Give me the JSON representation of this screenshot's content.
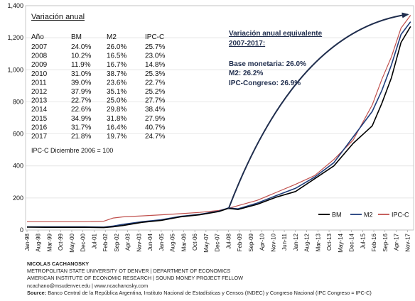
{
  "chart_data": {
    "type": "line",
    "ylim": [
      0,
      1400
    ],
    "yticks": [
      0,
      200,
      400,
      600,
      800,
      1000,
      1200,
      1400
    ],
    "x_tick_labels": [
      "Jan-98",
      "Aug-98",
      "Mar-99",
      "Oct-99",
      "May-00",
      "Dec-00",
      "Jul-01",
      "Feb-02",
      "Sep-02",
      "Apr-03",
      "Nov-03",
      "Jun-04",
      "Jan-05",
      "Aug-05",
      "Mar-06",
      "Oct-06",
      "May-07",
      "Dec-07",
      "Jul-08",
      "Feb-09",
      "Sep-09",
      "Apr-10",
      "Nov-10",
      "Jun-11",
      "Jan-12",
      "Aug-12",
      "Mar-13",
      "Oct-13",
      "May-14",
      "Dec-14",
      "Jul-15",
      "Feb-16",
      "Sep-16",
      "Apr-17",
      "Nov-17"
    ],
    "x_points": [
      "Jan-98",
      "Jan-99",
      "Jan-00",
      "Jan-01",
      "Jan-02",
      "Jul-02",
      "Jan-03",
      "Jan-04",
      "Jan-05",
      "Jan-06",
      "Jan-07",
      "Jan-08",
      "Jul-08",
      "Jan-09",
      "Jan-10",
      "Jan-11",
      "Jan-12",
      "Jan-13",
      "Jan-14",
      "Jan-15",
      "Jan-16",
      "Jul-16",
      "Jan-17",
      "Jul-17",
      "Jan-18"
    ],
    "series": [
      {
        "name": "BM",
        "color": "#000000",
        "values": [
          18,
          17,
          17,
          17,
          15,
          20,
          28,
          48,
          60,
          82,
          95,
          115,
          135,
          128,
          160,
          205,
          240,
          320,
          400,
          540,
          650,
          790,
          950,
          1170,
          1270
        ]
      },
      {
        "name": "M2",
        "color": "#1f3d7a",
        "values": [
          20,
          20,
          20,
          20,
          18,
          25,
          35,
          52,
          64,
          85,
          98,
          118,
          138,
          132,
          168,
          215,
          260,
          330,
          420,
          580,
          740,
          870,
          1030,
          1220,
          1300
        ]
      },
      {
        "name": "IPC-C",
        "color": "#c0504d",
        "values": [
          52,
          52,
          52,
          52,
          55,
          75,
          82,
          88,
          95,
          102,
          110,
          122,
          135,
          152,
          185,
          235,
          285,
          340,
          440,
          560,
          780,
          940,
          1080,
          1260,
          1340
        ]
      }
    ],
    "arrow": {
      "from": {
        "x": "Jul-08",
        "y": 130
      },
      "to": {
        "x": "Jan-18",
        "y": 1345
      }
    },
    "legend_position": "bottom-right"
  },
  "table": {
    "title": "Variación anual",
    "headers": [
      "Año",
      "BM",
      "M2",
      "IPC-C"
    ],
    "rows": [
      [
        "2007",
        "24.0%",
        "26.0%",
        "25.7%"
      ],
      [
        "2008",
        "10.2%",
        "16.5%",
        "23.0%"
      ],
      [
        "2009",
        "11.9%",
        "16.7%",
        "14.8%"
      ],
      [
        "2010",
        "31.0%",
        "38.7%",
        "25.3%"
      ],
      [
        "2011",
        "39.0%",
        "23.6%",
        "22.7%"
      ],
      [
        "2012",
        "37.9%",
        "35.1%",
        "25.2%"
      ],
      [
        "2013",
        "22.7%",
        "25.0%",
        "27.7%"
      ],
      [
        "2014",
        "22.6%",
        "29.8%",
        "38.4%"
      ],
      [
        "2015",
        "34.9%",
        "31.8%",
        "27.9%"
      ],
      [
        "2016",
        "31.7%",
        "16.4%",
        "40.7%"
      ],
      [
        "2017",
        "21.8%",
        "19.7%",
        "24.7%"
      ]
    ],
    "note": "IPC-C Diciembre 2006 = 100"
  },
  "equivalent": {
    "title_line1": "Variación anual equivalente",
    "title_line2": "2007-2017:",
    "lines": [
      "Base monetaria: 26.0%",
      "M2: 26.2%",
      "IPC-Congreso: 26.9%"
    ]
  },
  "footer": {
    "author": "NICOLAS CACHANOSKY",
    "line1": "METROPOLITAN STATE UNIVERSITY OT DENVER | DEPARTMENT OF ECONOMICS",
    "line2": "AMERICAN INSTITUTE OF ECONOMIC RESEARCH | SOUND MONEY PROJECT FELLOW",
    "line3": "ncachano@msudenver.edu  |  www.ncachanosky.com",
    "source_label": "Source:",
    "source_text": "Banco Central de la República Argentina, Instituto Nacional de Estadísticas y Censos (INDEC) y Congreso Nacional (IPC Congreso = IPC-C)"
  }
}
